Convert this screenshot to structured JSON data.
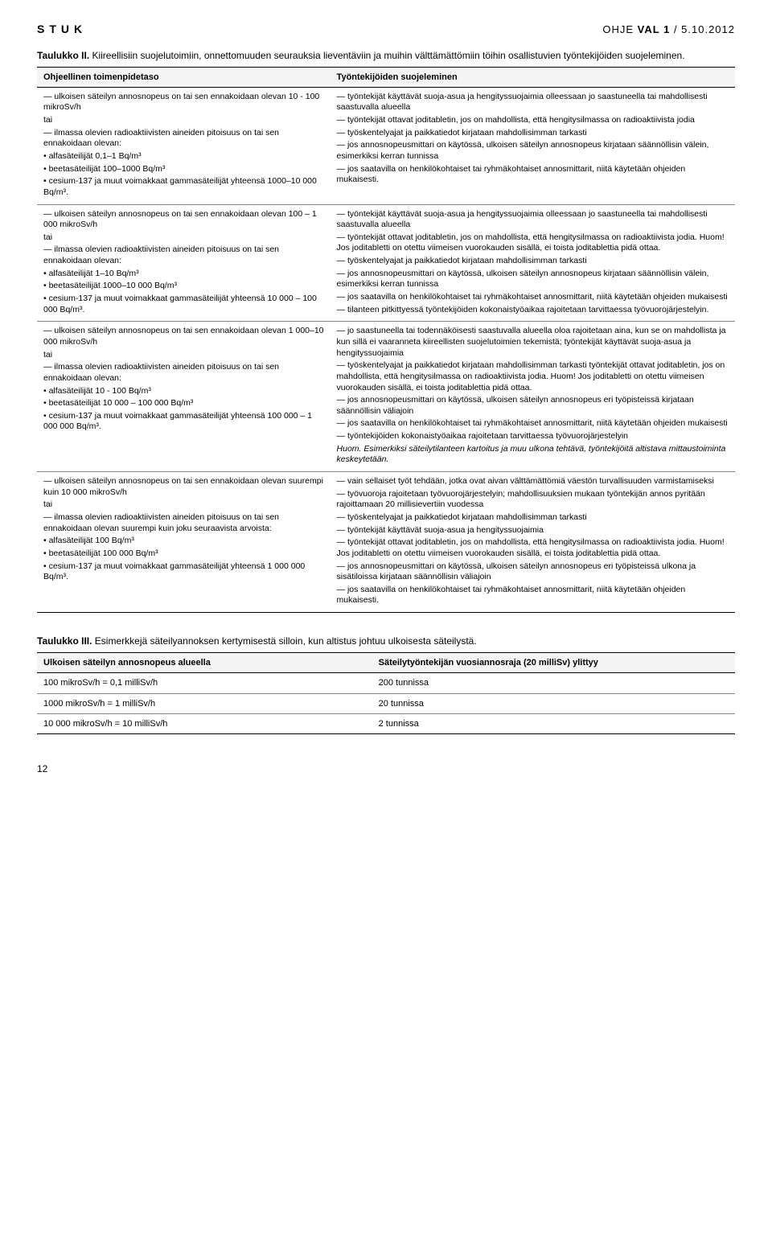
{
  "header": {
    "left": "STUK",
    "right_prefix": "OHJE ",
    "right_bold": "VAL 1",
    "right_suffix": " / 5.10.2012"
  },
  "table2": {
    "caption_bold": "Taulukko II.",
    "caption_rest": " Kiireellisiin suojelutoimiin, onnettomuuden seurauksia lieventäviin ja muihin välttämättömiin töihin osallistuvien työntekijöiden suojeleminen.",
    "head_left": "Ohjeellinen toimenpidetaso",
    "head_right": "Työntekijöiden suojeleminen",
    "rows": [
      {
        "left": [
          {
            "t": "dash",
            "v": "ulkoisen säteilyn annosnopeus on tai sen ennakoidaan olevan 10 - 100 mikroSv/h"
          },
          {
            "t": "p",
            "v": "tai"
          },
          {
            "t": "dash",
            "v": "ilmassa olevien radioaktiivisten aineiden pitoisuus on tai sen ennakoidaan olevan:"
          },
          {
            "t": "dot",
            "v": "alfasäteilijät 0,1–1 Bq/m³"
          },
          {
            "t": "dot",
            "v": "beetasäteilijät 100–1000 Bq/m³"
          },
          {
            "t": "dot",
            "v": "cesium-137 ja muut voimakkaat gammasäteilijät yhteensä 1000–10 000 Bq/m³."
          }
        ],
        "right": [
          {
            "t": "dash",
            "v": "työntekijät käyttävät suoja-asua ja hengityssuojaimia olleessaan jo saastuneella tai mahdollisesti saastuvalla alueella"
          },
          {
            "t": "dash",
            "v": "työntekijät ottavat joditabletin, jos on mahdollista, että hengitysilmassa on radioaktiivista jodia"
          },
          {
            "t": "dash",
            "v": "työskentelyajat ja paikkatiedot kirjataan mahdollisimman tarkasti"
          },
          {
            "t": "dash",
            "v": "jos annosnopeusmittari on käytössä, ulkoisen säteilyn annosnopeus kirjataan säännöllisin välein, esimerkiksi kerran tunnissa"
          },
          {
            "t": "dash",
            "v": "jos saatavilla on henkilökohtaiset tai ryhmäkohtaiset annosmittarit, niitä käytetään ohjeiden mukaisesti."
          }
        ]
      },
      {
        "left": [
          {
            "t": "dash",
            "v": "ulkoisen säteilyn annosnopeus on tai sen ennakoidaan olevan 100 – 1 000 mikroSv/h"
          },
          {
            "t": "p",
            "v": "tai"
          },
          {
            "t": "dash",
            "v": "ilmassa olevien radioaktiivisten aineiden pitoisuus on tai sen ennakoidaan olevan:"
          },
          {
            "t": "dot",
            "v": "alfasäteilijät 1–10 Bq/m³"
          },
          {
            "t": "dot",
            "v": "beetasäteilijät 1000–10 000 Bq/m³"
          },
          {
            "t": "dot",
            "v": "cesium-137 ja muut voimakkaat gammasäteilijät yhteensä 10 000 – 100 000 Bq/m³."
          }
        ],
        "right": [
          {
            "t": "dash",
            "v": "työntekijät käyttävät suoja-asua ja hengityssuojaimia olleessaan jo saastuneella tai mahdollisesti saastuvalla alueella"
          },
          {
            "t": "dash",
            "v": "työntekijät ottavat joditabletin, jos on mahdollista, että hengitysilmassa on radioaktiivista jodia. Huom! Jos joditabletti on otettu viimeisen vuorokauden sisällä, ei toista joditablettia pidä ottaa."
          },
          {
            "t": "dash",
            "v": "työskentelyajat ja paikkatiedot kirjataan mahdollisimman tarkasti"
          },
          {
            "t": "dash",
            "v": "jos annosnopeusmittari on käytössä, ulkoisen säteilyn annosnopeus kirjataan säännöllisin välein, esimerkiksi kerran tunnissa"
          },
          {
            "t": "dash",
            "v": "jos saatavilla on henkilökohtaiset tai ryhmäkohtaiset annosmittarit, niitä käytetään ohjeiden mukaisesti"
          },
          {
            "t": "dash",
            "v": "tilanteen pitkittyessä työntekijöiden kokonaistyöaikaa rajoitetaan tarvittaessa työvuorojärjestelyin."
          }
        ]
      },
      {
        "left": [
          {
            "t": "dash",
            "v": "ulkoisen säteilyn annosnopeus on tai sen ennakoidaan olevan 1 000–10 000 mikroSv/h"
          },
          {
            "t": "p",
            "v": "tai"
          },
          {
            "t": "dash",
            "v": "ilmassa olevien radioaktiivisten aineiden pitoisuus on tai sen ennakoidaan olevan:"
          },
          {
            "t": "dot",
            "v": "alfasäteilijät 10 - 100 Bq/m³"
          },
          {
            "t": "dot",
            "v": "beetasäteilijät 10 000 – 100 000 Bq/m³"
          },
          {
            "t": "dot",
            "v": "cesium-137 ja muut voimakkaat gammasäteilijät yhteensä 100 000 – 1 000 000 Bq/m³."
          }
        ],
        "right": [
          {
            "t": "dash",
            "v": "jo saastuneella tai todennäköisesti saastuvalla alueella oloa rajoitetaan aina, kun se on mahdollista ja kun sillä ei vaaranneta kiireellisten suojelutoimien tekemistä; työntekijät käyttävät suoja-asua ja hengityssuojaimia"
          },
          {
            "t": "dash",
            "v": "työskentelyajat ja paikkatiedot kirjataan mahdollisimman tarkasti työntekijät ottavat joditabletin, jos on mahdollista, että hengitysilmassa on radioaktiivista jodia. Huom! Jos joditabletti on otettu viimeisen vuorokauden sisällä, ei toista joditablettia pidä ottaa."
          },
          {
            "t": "dash",
            "v": "jos annosnopeusmittari on käytössä, ulkoisen säteilyn annosnopeus eri työpisteissä kirjataan säännöllisin väliajoin"
          },
          {
            "t": "dash",
            "v": "jos saatavilla on henkilökohtaiset tai ryhmäkohtaiset annosmittarit, niitä käytetään ohjeiden mukaisesti"
          },
          {
            "t": "dash",
            "v": "työntekijöiden kokonaistyöaikaa rajoitetaan tarvittaessa työvuorojärjestelyin"
          },
          {
            "t": "ital",
            "v": "Huom. Esimerkiksi säteilytilanteen kartoitus ja muu ulkona tehtävä, työntekijöitä altistava mittaustoiminta keskeytetään."
          }
        ]
      },
      {
        "left": [
          {
            "t": "dash",
            "v": "ulkoisen säteilyn annosnopeus on tai sen ennakoidaan olevan suurempi kuin 10 000 mikroSv/h"
          },
          {
            "t": "p",
            "v": "tai"
          },
          {
            "t": "dash",
            "v": "ilmassa olevien radioaktiivisten aineiden pitoisuus on tai sen ennakoidaan olevan suurempi kuin joku seuraavista arvoista:"
          },
          {
            "t": "dot",
            "v": "alfasäteilijät 100 Bq/m³"
          },
          {
            "t": "dot",
            "v": "beetasäteilijät 100 000 Bq/m³"
          },
          {
            "t": "dot",
            "v": "cesium-137 ja muut voimakkaat gammasäteilijät yhteensä 1 000 000 Bq/m³."
          }
        ],
        "right": [
          {
            "t": "dash",
            "v": "vain sellaiset työt tehdään, jotka ovat aivan välttämättömiä väestön turvallisuuden varmistamiseksi"
          },
          {
            "t": "dash",
            "v": "työvuoroja rajoitetaan työvuorojärjestelyin; mahdollisuuksien mukaan työntekijän annos pyritään rajoittamaan 20 millisievertiin vuodessa"
          },
          {
            "t": "dash",
            "v": "työskentelyajat ja paikkatiedot kirjataan mahdollisimman tarkasti"
          },
          {
            "t": "dash",
            "v": "työntekijät käyttävät suoja-asua ja hengityssuojaimia"
          },
          {
            "t": "dash",
            "v": "työntekijät ottavat joditabletin, jos on mahdollista, että hengitysilmassa on radioaktiivista jodia. Huom! Jos joditabletti on otettu viimeisen vuorokauden sisällä, ei toista joditablettia pidä ottaa."
          },
          {
            "t": "dash",
            "v": "jos annosnopeusmittari on käytössä, ulkoisen säteilyn annosnopeus eri työpisteissä ulkona ja sisätiloissa kirjataan säännöllisin väliajoin"
          },
          {
            "t": "dash",
            "v": "jos saatavilla on henkilökohtaiset tai ryhmäkohtaiset annosmittarit, niitä käytetään ohjeiden mukaisesti."
          }
        ]
      }
    ]
  },
  "table3": {
    "caption_bold": "Taulukko III.",
    "caption_rest": " Esimerkkejä säteilyannoksen kertymisestä silloin, kun altistus johtuu ulkoisesta säteilystä.",
    "head_left": "Ulkoisen säteilyn annosnopeus alueella",
    "head_right": "Säteilytyöntekijän vuosiannosraja (20 milliSv) ylittyy",
    "rows": [
      [
        "100 mikroSv/h = 0,1 milliSv/h",
        "200 tunnissa"
      ],
      [
        "1000 mikroSv/h = 1 milliSv/h",
        "20 tunnissa"
      ],
      [
        "10 000 mikroSv/h  = 10 milliSv/h",
        "2 tunnissa"
      ]
    ]
  },
  "page_number": "12"
}
